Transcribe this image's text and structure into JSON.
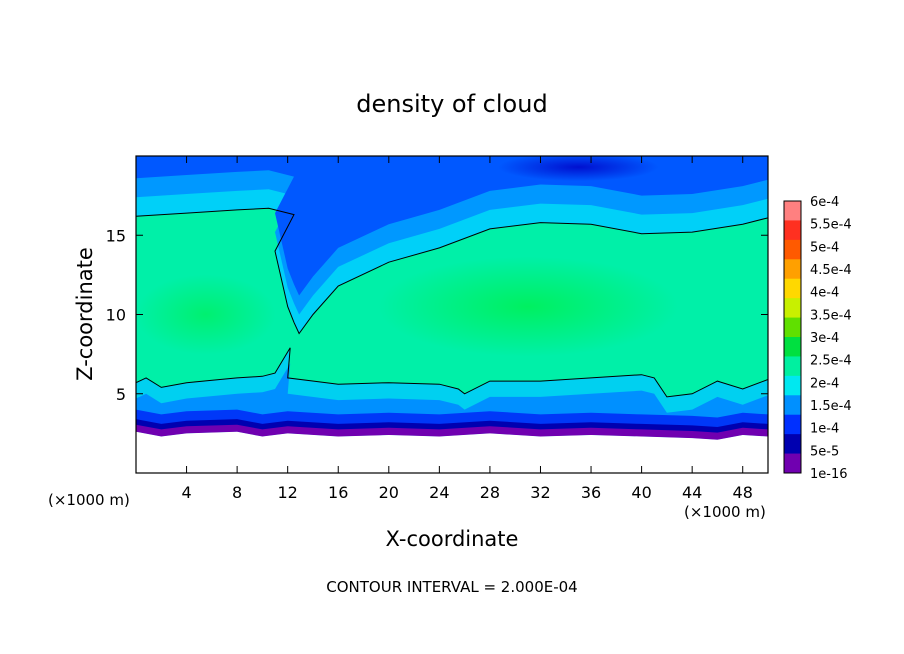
{
  "chart_data": {
    "type": "heatmap",
    "title": "density of cloud",
    "xlabel": "X-coordinate",
    "ylabel": "Z-coordinate",
    "x_unit_left": "(×1000 m)",
    "x_unit_right": "(×1000 m)",
    "xlim": [
      0,
      50
    ],
    "ylim": [
      0,
      20
    ],
    "x_ticks": [
      4,
      8,
      12,
      16,
      20,
      24,
      28,
      32,
      36,
      40,
      44,
      48
    ],
    "y_ticks": [
      5,
      10,
      15
    ],
    "footer": "CONTOUR INTERVAL = 2.000E-04",
    "colorbar": {
      "labels": [
        "6e-4",
        "5.5e-4",
        "5e-4",
        "4.5e-4",
        "4e-4",
        "3.5e-4",
        "3e-4",
        "2.5e-4",
        "2e-4",
        "1.5e-4",
        "1e-4",
        "5e-5",
        "1e-16"
      ],
      "colors": [
        "#ff8080",
        "#ff3020",
        "#ff5a00",
        "#ffa000",
        "#ffd800",
        "#c8f000",
        "#60e000",
        "#00e040",
        "#00f0a0",
        "#00e8f0",
        "#0090ff",
        "#0030ff",
        "#0000b0",
        "#7000b0"
      ]
    },
    "contour_level": 0.0002,
    "contour_upper": [
      [
        0,
        16.2
      ],
      [
        4,
        16.4
      ],
      [
        8,
        16.6
      ],
      [
        10.5,
        16.7
      ],
      [
        12.5,
        16.3
      ],
      [
        11,
        14
      ],
      [
        12,
        10.5
      ],
      [
        12.5,
        9.5
      ],
      [
        12.9,
        8.8
      ],
      [
        14,
        10
      ],
      [
        16,
        11.8
      ],
      [
        20,
        13.3
      ],
      [
        24,
        14.2
      ],
      [
        28,
        15.4
      ],
      [
        32,
        15.8
      ],
      [
        36,
        15.7
      ],
      [
        40,
        15.1
      ],
      [
        44,
        15.2
      ],
      [
        48,
        15.7
      ],
      [
        50,
        16.1
      ]
    ],
    "contour_lower": [
      [
        0,
        5.7
      ],
      [
        0.8,
        6.0
      ],
      [
        2,
        5.4
      ],
      [
        4,
        5.7
      ],
      [
        8,
        6.0
      ],
      [
        10,
        6.1
      ],
      [
        11,
        6.3
      ],
      [
        12.2,
        7.9
      ],
      [
        12,
        6.0
      ],
      [
        16,
        5.6
      ],
      [
        20,
        5.7
      ],
      [
        24,
        5.6
      ],
      [
        25.5,
        5.3
      ],
      [
        26,
        5.0
      ],
      [
        28,
        5.8
      ],
      [
        32,
        5.8
      ],
      [
        36,
        6.0
      ],
      [
        40,
        6.2
      ],
      [
        41,
        6.0
      ],
      [
        42,
        4.8
      ],
      [
        44,
        5.0
      ],
      [
        46,
        5.8
      ],
      [
        48,
        5.3
      ],
      [
        50,
        5.9
      ]
    ],
    "ground_level": [
      [
        0,
        2.6
      ],
      [
        2,
        2.3
      ],
      [
        4,
        2.5
      ],
      [
        8,
        2.6
      ],
      [
        10,
        2.3
      ],
      [
        12,
        2.5
      ],
      [
        16,
        2.3
      ],
      [
        20,
        2.4
      ],
      [
        24,
        2.3
      ],
      [
        28,
        2.5
      ],
      [
        32,
        2.3
      ],
      [
        36,
        2.4
      ],
      [
        40,
        2.3
      ],
      [
        44,
        2.2
      ],
      [
        46,
        2.1
      ],
      [
        48,
        2.4
      ],
      [
        50,
        2.3
      ]
    ]
  }
}
